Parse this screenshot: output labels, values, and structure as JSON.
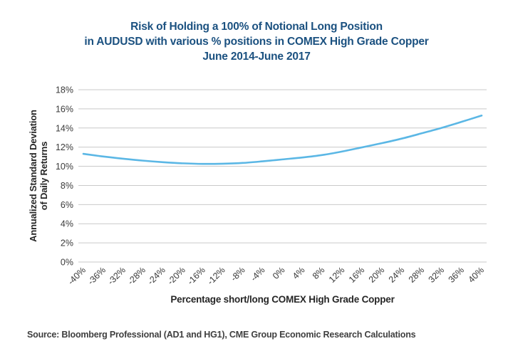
{
  "title": {
    "line1": "Risk of Holding a 100% of Notional Long Position",
    "line2": "in AUDUSD with various % positions in COMEX High Grade Copper",
    "line3": "June 2014-June 2017"
  },
  "chart_data": {
    "type": "line",
    "title": "Risk of Holding a 100% of Notional Long Position in AUDUSD with various % positions in COMEX High Grade Copper June 2014-June 2017",
    "x": [
      -40,
      -36,
      -32,
      -28,
      -24,
      -20,
      -16,
      -12,
      -8,
      -4,
      0,
      4,
      8,
      12,
      16,
      20,
      24,
      28,
      32,
      36,
      40
    ],
    "x_tick_labels": [
      "-40%",
      "-36%",
      "-32%",
      "-28%",
      "-24%",
      "-20%",
      "-16%",
      "-12%",
      "-8%",
      "-4%",
      "0%",
      "4%",
      "8%",
      "12%",
      "16%",
      "20%",
      "24%",
      "28%",
      "32%",
      "36%",
      "40%"
    ],
    "series": [
      {
        "name": "Annualized standard deviation of daily returns",
        "values": [
          11.3,
          11.02,
          10.79,
          10.59,
          10.43,
          10.31,
          10.25,
          10.27,
          10.35,
          10.52,
          10.72,
          10.92,
          11.18,
          11.55,
          11.98,
          12.42,
          12.9,
          13.45,
          14.02,
          14.65,
          15.3
        ]
      }
    ],
    "xlabel": "Percentage short/long COMEX High Grade Copper",
    "ylabel": "Annualized Standard Deviation of Daily Returns",
    "ylabel_line1": "Annualized Standard Deviation",
    "ylabel_line2": "of Daily Returns",
    "ylim": [
      0,
      18
    ],
    "ytick_step": 2,
    "ytick_labels": [
      "0%",
      "2%",
      "4%",
      "6%",
      "8%",
      "10%",
      "12%",
      "14%",
      "16%",
      "18%"
    ],
    "grid": true,
    "legend": "none",
    "line_color": "#5bb7e5",
    "grid_color": "#c9c9c9"
  },
  "source": "Source: Bloomberg Professional (AD1 and HG1), CME Group Economic Research Calculations",
  "colors": {
    "title": "#1b5180",
    "axis_title": "#262626",
    "tick": "#3a3a3a",
    "source": "#3f3f3f"
  }
}
